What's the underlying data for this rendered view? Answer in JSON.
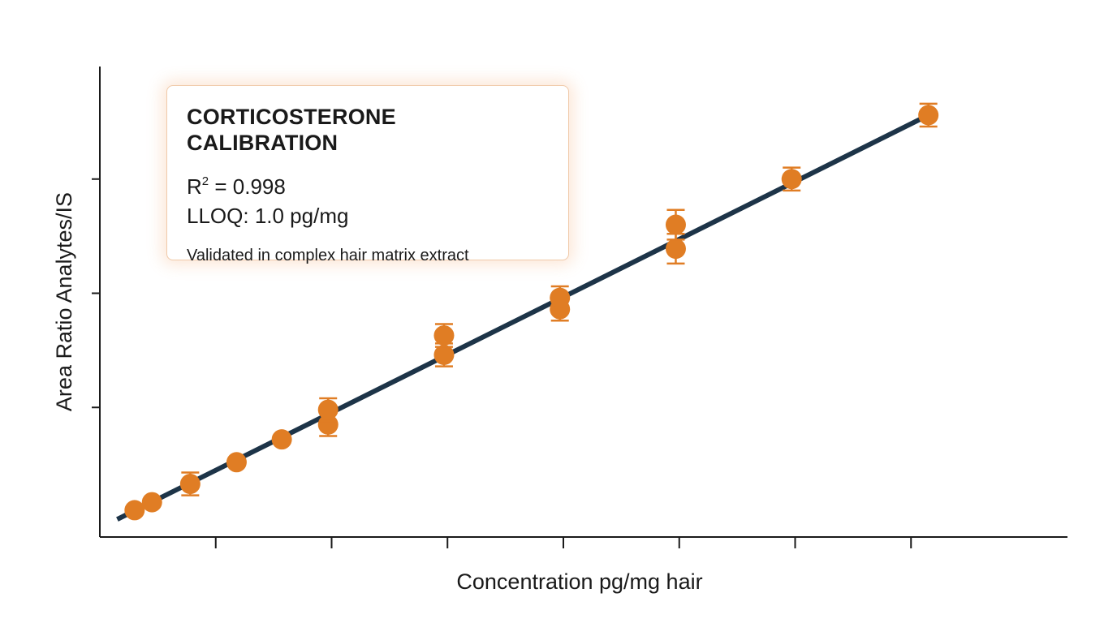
{
  "chart_data": {
    "type": "scatter",
    "xlabel": "Concentration pg/mg hair",
    "ylabel": "Area Ratio Analytes/IS",
    "xlim": [
      0,
      8
    ],
    "ylim": [
      0,
      4
    ],
    "x_ticks": [
      1,
      2,
      3,
      4,
      5,
      6,
      7
    ],
    "y_ticks": [
      1,
      2,
      3
    ],
    "grid": false,
    "series": [
      {
        "color": "#e07d24",
        "points": [
          {
            "x": 0.3,
            "y": 0.1,
            "err": 0
          },
          {
            "x": 0.45,
            "y": 0.17,
            "err": 0
          },
          {
            "x": 0.78,
            "y": 0.33,
            "err": 0.1
          },
          {
            "x": 1.18,
            "y": 0.52,
            "err": 0
          },
          {
            "x": 1.57,
            "y": 0.72,
            "err": 0
          },
          {
            "x": 1.97,
            "y": 0.85,
            "err": 0.1
          },
          {
            "x": 1.97,
            "y": 0.98,
            "err": 0.1
          },
          {
            "x": 2.97,
            "y": 1.46,
            "err": 0.1
          },
          {
            "x": 2.97,
            "y": 1.63,
            "err": 0.1
          },
          {
            "x": 3.97,
            "y": 1.86,
            "err": 0.1
          },
          {
            "x": 3.97,
            "y": 1.96,
            "err": 0.1
          },
          {
            "x": 4.97,
            "y": 2.39,
            "err": 0.13
          },
          {
            "x": 4.97,
            "y": 2.6,
            "err": 0.13
          },
          {
            "x": 5.97,
            "y": 3.0,
            "err": 0.1
          },
          {
            "x": 7.15,
            "y": 3.56,
            "err": 0.1
          }
        ]
      }
    ],
    "fit_line": {
      "x": [
        0.15,
        7.15
      ],
      "y": [
        0.02,
        3.56
      ],
      "color": "#1d3448"
    }
  },
  "annotation": {
    "title": "CORTICOSTERONE CALIBRATION",
    "r2_prefix": "R",
    "r2_exponent": "2",
    "r2_value": " = 0.998",
    "lloq": "LLOQ: 1.0 pg/mg",
    "note": "Validated in complex hair matrix extract"
  },
  "colors": {
    "axis": "#1a1a1a",
    "marker": "#e07d24",
    "fit_line": "#1d3448",
    "box_border": "#f0c9a8"
  }
}
